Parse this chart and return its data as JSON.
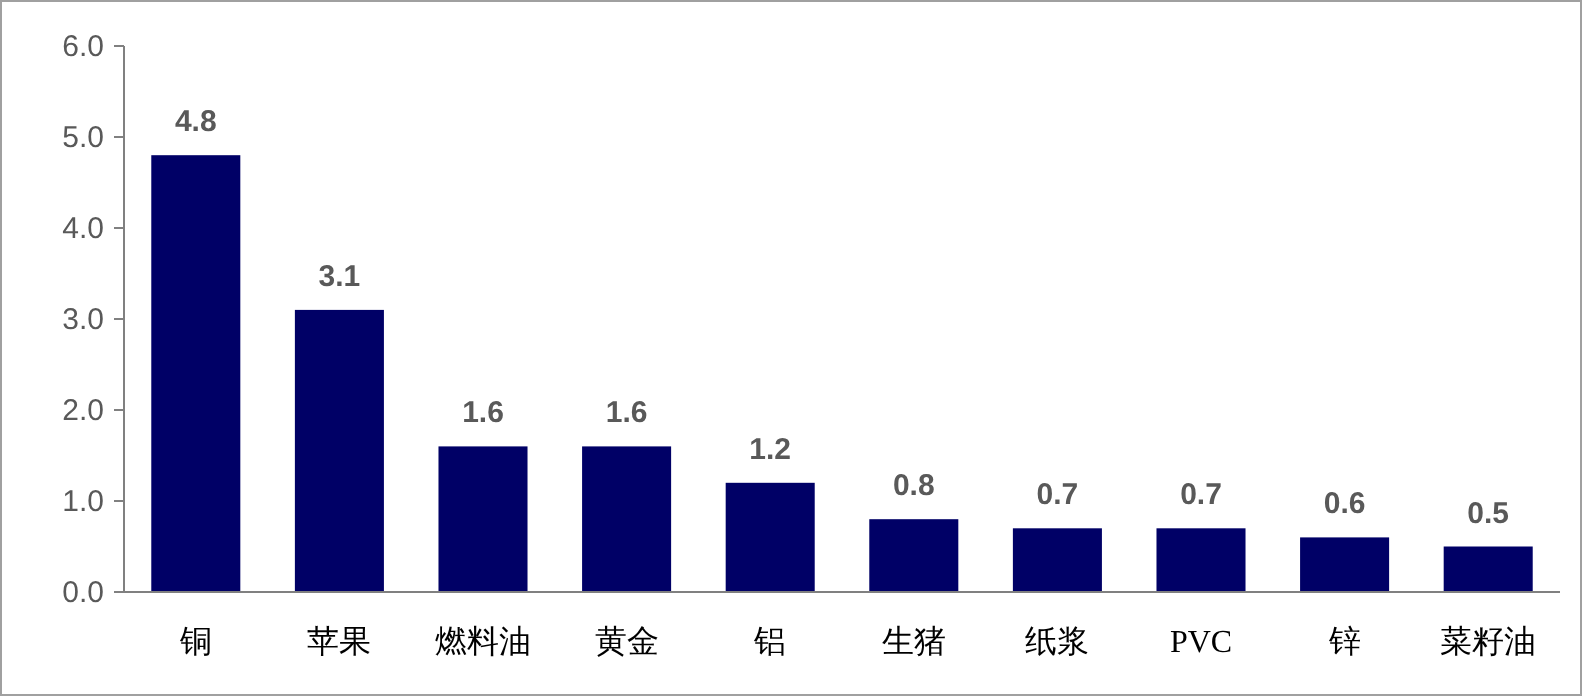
{
  "chart_data": {
    "type": "bar",
    "categories": [
      "铜",
      "苹果",
      "燃料油",
      "黄金",
      "铝",
      "生猪",
      "纸浆",
      "PVC",
      "锌",
      "菜籽油"
    ],
    "values": [
      4.8,
      3.1,
      1.6,
      1.6,
      1.2,
      0.8,
      0.7,
      0.7,
      0.6,
      0.5
    ],
    "color": "#000066",
    "ylim": [
      0,
      6
    ],
    "yticks": [
      {
        "value": 0,
        "label": "0.0"
      },
      {
        "value": 1,
        "label": "1.0"
      },
      {
        "value": 2,
        "label": "2.0"
      },
      {
        "value": 3,
        "label": "3.0"
      },
      {
        "value": 4,
        "label": "4.0"
      },
      {
        "value": 5,
        "label": "5.0"
      },
      {
        "value": 6,
        "label": "6.0"
      }
    ],
    "data_labels": true
  }
}
